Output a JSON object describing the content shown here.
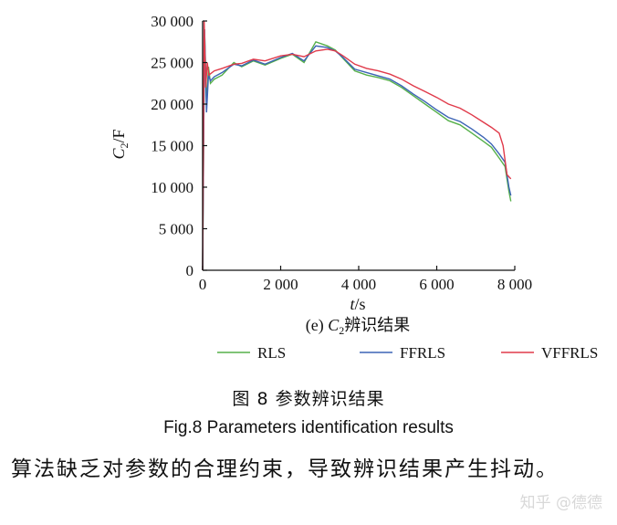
{
  "chart_data": {
    "type": "line",
    "caption_prefix": "(e) ",
    "caption_var": "C",
    "caption_sub": "2",
    "caption_suffix": "辨识结果",
    "xlabel_var": "t",
    "xlabel_unit": "/s",
    "ylabel_var": "C",
    "ylabel_sub": "2",
    "ylabel_unit": "/F",
    "xlim": [
      0,
      8000
    ],
    "ylim": [
      0,
      30000
    ],
    "x_ticks": [
      0,
      2000,
      4000,
      6000,
      8000
    ],
    "x_tick_labels": [
      "0",
      "2 000",
      "4 000",
      "6 000",
      "8 000"
    ],
    "y_ticks": [
      0,
      5000,
      10000,
      15000,
      20000,
      25000,
      30000
    ],
    "y_tick_labels": [
      "0",
      "5 000",
      "10 000",
      "15 000",
      "20 000",
      "25 000",
      "30 000"
    ],
    "grid": false,
    "legend_position": "bottom",
    "series": [
      {
        "name": "RLS",
        "color": "#56b04a",
        "x": [
          0,
          50,
          100,
          150,
          200,
          300,
          500,
          800,
          1000,
          1300,
          1600,
          2000,
          2300,
          2600,
          2900,
          3200,
          3400,
          3600,
          3900,
          4200,
          4500,
          4800,
          5100,
          5400,
          5700,
          6000,
          6300,
          6600,
          6900,
          7200,
          7400,
          7600,
          7750,
          7850,
          7900
        ],
        "y": [
          0,
          29000,
          20000,
          24500,
          22500,
          23000,
          23500,
          25000,
          24500,
          25200,
          24700,
          25500,
          26000,
          25000,
          27500,
          27000,
          26500,
          25500,
          24000,
          23500,
          23200,
          22800,
          22000,
          21000,
          20000,
          19000,
          18000,
          17500,
          16500,
          15500,
          14800,
          13500,
          12500,
          9500,
          8300
        ]
      },
      {
        "name": "FFRLS",
        "color": "#3b63b5",
        "x": [
          0,
          50,
          100,
          150,
          200,
          300,
          500,
          800,
          1000,
          1300,
          1600,
          2000,
          2300,
          2600,
          2900,
          3200,
          3400,
          3600,
          3900,
          4200,
          4500,
          4800,
          5100,
          5400,
          5700,
          6000,
          6300,
          6600,
          6900,
          7200,
          7400,
          7600,
          7750,
          7850,
          7900
        ],
        "y": [
          0,
          29000,
          19000,
          23500,
          22800,
          23300,
          23800,
          24800,
          24600,
          25300,
          24800,
          25600,
          26100,
          25200,
          27000,
          26800,
          26400,
          25600,
          24200,
          23800,
          23400,
          23000,
          22200,
          21200,
          20300,
          19300,
          18400,
          17900,
          17000,
          16000,
          15200,
          14000,
          13000,
          10000,
          9000
        ]
      },
      {
        "name": "VFFRLS",
        "color": "#e03a4a",
        "x": [
          0,
          40,
          80,
          120,
          160,
          300,
          500,
          800,
          1000,
          1300,
          1600,
          2000,
          2300,
          2600,
          2900,
          3200,
          3400,
          3600,
          3900,
          4200,
          4500,
          4800,
          5100,
          5400,
          5700,
          6000,
          6300,
          6600,
          6900,
          7200,
          7400,
          7600,
          7700,
          7800,
          7900
        ],
        "y": [
          0,
          30000,
          22000,
          25000,
          23500,
          24000,
          24300,
          24800,
          24900,
          25400,
          25200,
          25800,
          26000,
          25700,
          26400,
          26600,
          26400,
          25800,
          24800,
          24300,
          24000,
          23600,
          23000,
          22200,
          21500,
          20800,
          20000,
          19500,
          18700,
          17800,
          17200,
          16500,
          15000,
          11500,
          11000
        ]
      }
    ]
  },
  "figure": {
    "caption_cn": "图 8    参数辨识结果",
    "caption_en": "Fig.8     Parameters identification results"
  },
  "body": {
    "text": "算法缺乏对参数的合理约束，导致辨识结果产生抖动。"
  },
  "watermark": "知乎 @德德"
}
